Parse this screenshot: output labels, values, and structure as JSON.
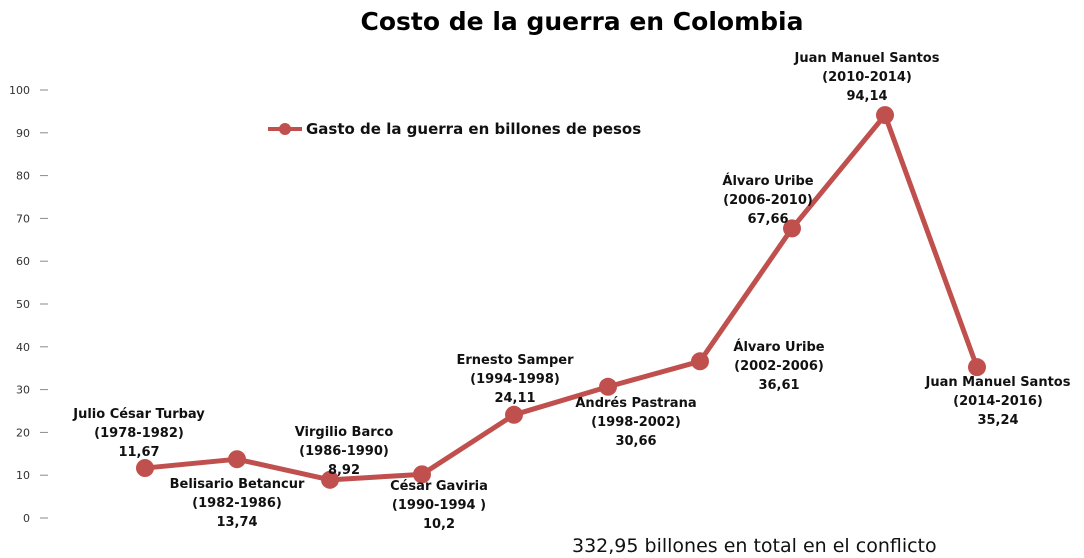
{
  "chart_data": {
    "type": "line",
    "title": "Costo de la guerra en Colombia",
    "xlabel": "",
    "ylabel": "",
    "ylim": [
      0,
      100
    ],
    "yticks": [
      0,
      10,
      20,
      30,
      40,
      50,
      60,
      70,
      80,
      90,
      100
    ],
    "grid": false,
    "legend_position": "top-left",
    "color": "#c0504d",
    "series": [
      {
        "name": "Gasto de la guerra en billones de pesos",
        "values": [
          11.67,
          13.74,
          8.92,
          10.2,
          24.11,
          30.66,
          36.61,
          67.66,
          94.14,
          35.24
        ]
      }
    ],
    "points": [
      {
        "name": "Julio César Turbay",
        "period": "(1978-1982)",
        "value_label": "11,67",
        "value": 11.67
      },
      {
        "name": "Belisario Betancur",
        "period": "(1982-1986)",
        "value_label": "13,74",
        "value": 13.74
      },
      {
        "name": "Virgilio Barco",
        "period": "(1986-1990)",
        "value_label": "8,92",
        "value": 8.92
      },
      {
        "name": "César Gaviria",
        "period": "(1990-1994 )",
        "value_label": "10,2",
        "value": 10.2
      },
      {
        "name": "Ernesto Samper",
        "period": "(1994-1998)",
        "value_label": "24,11",
        "value": 24.11
      },
      {
        "name": "Andrés Pastrana",
        "period": "(1998-2002)",
        "value_label": "30,66",
        "value": 30.66
      },
      {
        "name": "Álvaro Uribe",
        "period": "(2002-2006)",
        "value_label": "36,61",
        "value": 36.61
      },
      {
        "name": "Álvaro Uribe",
        "period": "(2006-2010)",
        "value_label": "67,66",
        "value": 67.66
      },
      {
        "name": "Juan Manuel Santos",
        "period": "(2010-2014)",
        "value_label": "94,14",
        "value": 94.14
      },
      {
        "name": "Juan Manuel Santos",
        "period": "(2014-2016)",
        "value_label": "35,24",
        "value": 35.24
      }
    ],
    "annotation": "332,95 billones en total en el conflicto"
  }
}
